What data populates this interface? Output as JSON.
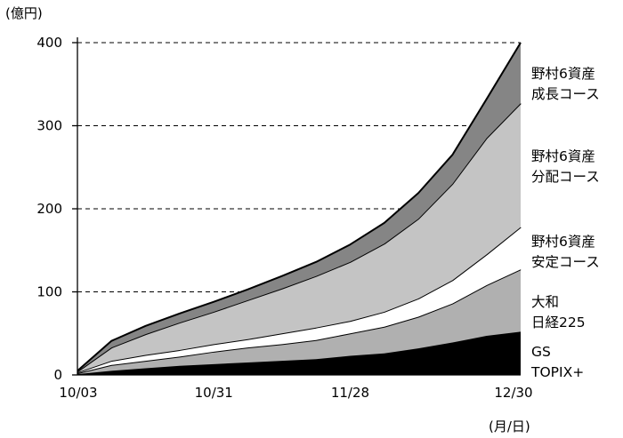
{
  "chart_data": {
    "type": "area",
    "stacked": true,
    "ylabel": "(億円)",
    "xlabel": "(月/日)",
    "ylim": [
      0,
      400
    ],
    "yticks": [
      "0",
      "100",
      "200",
      "300",
      "400"
    ],
    "xticks": [
      "10/03",
      "10/31",
      "11/28",
      "12/30"
    ],
    "grid": "dashed horizontal at 100, 200, 300, 400",
    "x": [
      "10/03",
      "10/10",
      "10/17",
      "10/24",
      "10/31",
      "11/07",
      "11/14",
      "11/21",
      "11/28",
      "12/05",
      "12/12",
      "12/19",
      "12/26",
      "12/30"
    ],
    "series": [
      {
        "name": "GS TOPIX+",
        "lines": [
          "GS",
          "TOPIX+"
        ],
        "color": "#000000",
        "cumulative": [
          1,
          5,
          8,
          11,
          13,
          15,
          17,
          19,
          23,
          26,
          32,
          39,
          47,
          52
        ]
      },
      {
        "name": "大和 日経225",
        "lines": [
          "大和",
          "日経225"
        ],
        "color": "#b0b0b0",
        "cumulative": [
          2,
          12,
          17,
          22,
          28,
          33,
          37,
          42,
          50,
          58,
          70,
          86,
          108,
          127
        ]
      },
      {
        "name": "野村6資産 安定コース",
        "lines": [
          "野村6資産",
          "安定コース"
        ],
        "color": "#ffffff",
        "cumulative": [
          3,
          17,
          24,
          30,
          37,
          43,
          50,
          57,
          65,
          76,
          92,
          114,
          145,
          178
        ]
      },
      {
        "name": "野村6資産 分配コース",
        "lines": [
          "野村6資産",
          "分配コース"
        ],
        "color": "#c4c4c4",
        "cumulative": [
          4,
          33,
          49,
          63,
          76,
          90,
          104,
          119,
          136,
          158,
          188,
          230,
          285,
          327
        ]
      },
      {
        "name": "野村6資産 成長コース",
        "lines": [
          "野村6資産",
          "成長コース"
        ],
        "color": "#858585",
        "cumulative": [
          5,
          41,
          59,
          74,
          88,
          103,
          119,
          136,
          157,
          183,
          219,
          265,
          332,
          400
        ]
      }
    ]
  }
}
